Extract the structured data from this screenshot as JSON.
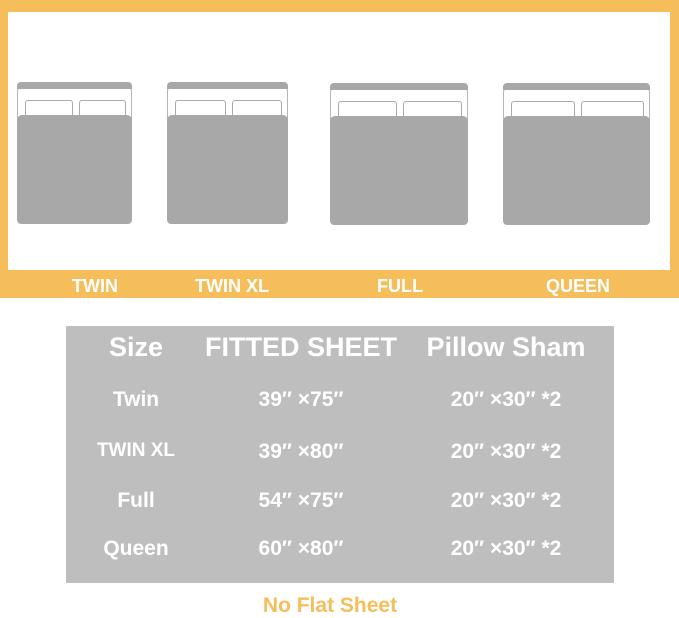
{
  "beds": [
    {
      "label": "TWIN"
    },
    {
      "label": "TWIN XL"
    },
    {
      "label": "FULL"
    },
    {
      "label": "QUEEN"
    }
  ],
  "table": {
    "headers": [
      "Size",
      "FITTED SHEET",
      "Pillow Sham"
    ],
    "rows": [
      [
        "Twin",
        "39″ ×75″",
        "20″ ×30″ *2"
      ],
      [
        "TWIN XL",
        "39″ ×80″",
        "20″ ×30″ *2"
      ],
      [
        "Full",
        "54″ ×75″",
        "20″ ×30″ *2"
      ],
      [
        "Queen",
        "60″ ×80″",
        "20″ ×30″ *2"
      ]
    ]
  },
  "note": "No Flat Sheet",
  "colors": {
    "accent": "#F5BE5A",
    "table_bg": "#BEBEBE",
    "bed_gray": "#A8A8A8"
  }
}
